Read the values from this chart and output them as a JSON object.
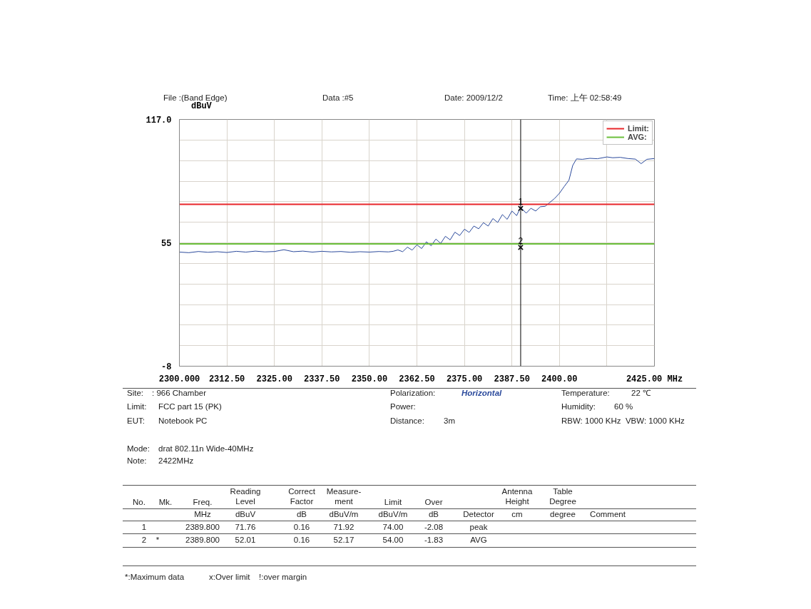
{
  "chart_data": {
    "type": "line",
    "xlim": [
      2300,
      2425
    ],
    "ylim": [
      -8,
      117
    ],
    "xticks": [
      {
        "value": 2300,
        "label": "2300.000"
      },
      {
        "value": 2312.5,
        "label": "2312.50"
      },
      {
        "value": 2325,
        "label": "2325.00"
      },
      {
        "value": 2337.5,
        "label": "2337.50"
      },
      {
        "value": 2350,
        "label": "2350.00"
      },
      {
        "value": 2362.5,
        "label": "2362.50"
      },
      {
        "value": 2375,
        "label": "2375.00"
      },
      {
        "value": 2387.5,
        "label": "2387.50"
      },
      {
        "value": 2400,
        "label": "2400.00"
      },
      {
        "value": 2412.5,
        "label": null
      },
      {
        "value": 2425,
        "label": "2425.00 MHz"
      }
    ],
    "yticks": [
      {
        "value": -8,
        "label": "-8"
      },
      {
        "value": 2.42,
        "label": null
      },
      {
        "value": 12.83,
        "label": null
      },
      {
        "value": 23.25,
        "label": null
      },
      {
        "value": 33.67,
        "label": null
      },
      {
        "value": 44.08,
        "label": null
      },
      {
        "value": 54.5,
        "label": "55"
      },
      {
        "value": 64.92,
        "label": null
      },
      {
        "value": 75.33,
        "label": null
      },
      {
        "value": 85.75,
        "label": null
      },
      {
        "value": 96.17,
        "label": null
      },
      {
        "value": 106.58,
        "label": null
      },
      {
        "value": 117,
        "label": "117.0"
      }
    ],
    "ylabel": "dBuV",
    "grid": true,
    "legend": "top right",
    "series": [
      {
        "color": "#2b4a9c",
        "x": [
          2300,
          2302.5,
          2305,
          2307.5,
          2310,
          2312.5,
          2315,
          2317.5,
          2320,
          2322.5,
          2325,
          2327.5,
          2330,
          2332.5,
          2335,
          2337.5,
          2340,
          2342.5,
          2345,
          2347.5,
          2350,
          2352.5,
          2355,
          2356.25,
          2357.5,
          2358.75,
          2360,
          2361.25,
          2362.5,
          2363.75,
          2365,
          2366.25,
          2367.5,
          2368.75,
          2370,
          2371.25,
          2372.5,
          2373.75,
          2375,
          2376.25,
          2377.5,
          2378.75,
          2380,
          2381.25,
          2382.5,
          2383.75,
          2385,
          2386.25,
          2387.5,
          2388.75,
          2389.8,
          2391.25,
          2392.5,
          2393.75,
          2395,
          2396.25,
          2397.5,
          2398.75,
          2400,
          2401.25,
          2402.5,
          2403.5,
          2404.5,
          2406,
          2408,
          2410,
          2412.5,
          2414,
          2416,
          2418,
          2420,
          2421.5,
          2423,
          2425
        ],
        "values": [
          49.8,
          49.5,
          50.1,
          49.7,
          50.0,
          49.6,
          50.2,
          49.8,
          50.3,
          49.9,
          50.1,
          51.0,
          50.0,
          50.3,
          49.8,
          50.2,
          49.9,
          50.1,
          49.7,
          50.0,
          49.8,
          50.1,
          49.9,
          50.2,
          50.9,
          50.0,
          52.3,
          50.8,
          53.5,
          51.6,
          55.0,
          53.0,
          56.4,
          54.2,
          57.8,
          56.0,
          59.9,
          58.2,
          61.4,
          59.8,
          63.0,
          61.6,
          64.7,
          63.0,
          66.8,
          64.8,
          68.8,
          66.4,
          70.6,
          68.3,
          72.5,
          69.5,
          72.0,
          70.6,
          72.8,
          73.0,
          75.0,
          77.0,
          79.6,
          83.0,
          86.2,
          93.7,
          97.0,
          96.8,
          97.3,
          97.1,
          98.0,
          97.6,
          97.8,
          97.2,
          96.9,
          94.6,
          96.8,
          97.2
        ]
      },
      {
        "name": "Limit:",
        "color": "#e8262a",
        "x": [
          2300,
          2425
        ],
        "values": [
          74,
          74
        ]
      },
      {
        "name": "AVG:",
        "color": "#6abf3a",
        "x": [
          2300,
          2425
        ],
        "values": [
          54,
          54
        ]
      },
      {
        "type": "scatter",
        "marker": "cross",
        "color": "#000000",
        "x": [
          2389.8,
          2389.8
        ],
        "values": [
          71.92,
          52.17
        ]
      }
    ],
    "ref_lines": [
      {
        "axis": "x",
        "value": 2389.8,
        "color": "#000000"
      }
    ],
    "annotations": [
      "File :(Band Edge)",
      "Data :#5",
      "Date: 2009/12/2",
      "Time: 上午 02:58:49",
      "Site:",
      ": 966 Chamber",
      "Limit:",
      "FCC part 15 (PK)",
      "EUT:",
      "Notebook PC",
      "Mode:",
      "drat 802.11n Wide-40MHz",
      "Note:",
      "2422MHz",
      "Polarization:",
      "Horizontal",
      "Power:",
      "Distance:",
      "3m",
      "Temperature:",
      "22 ℃",
      "Humidity:",
      "60 %",
      "RBW: 1000 KHz  VBW: 1000 KHz",
      "No.",
      "Mk.",
      "Freq.",
      "Reading Level",
      "Correct Factor",
      "Measure-ment",
      "Limit",
      "Over",
      "Antenna Height",
      "Table Degree",
      "MHz",
      "dBuV",
      "dB",
      "dBuV/m",
      "dBuV/m",
      "dB",
      "Detector",
      "cm",
      "degree",
      "Comment",
      "1",
      "2389.800",
      "71.76",
      "0.16",
      "71.92",
      "74.00",
      "-2.08",
      "peak",
      "2",
      "*",
      "2389.800",
      "52.01",
      "0.16",
      "52.17",
      "54.00",
      "-1.83",
      "AVG",
      "*:Maximum data",
      "x:Over limit",
      "!:over margin",
      {
        "text": "1",
        "x": 2389.8,
        "y": 71.92
      },
      {
        "text": "2",
        "x": 2389.8,
        "y": 52.17
      }
    ]
  }
}
